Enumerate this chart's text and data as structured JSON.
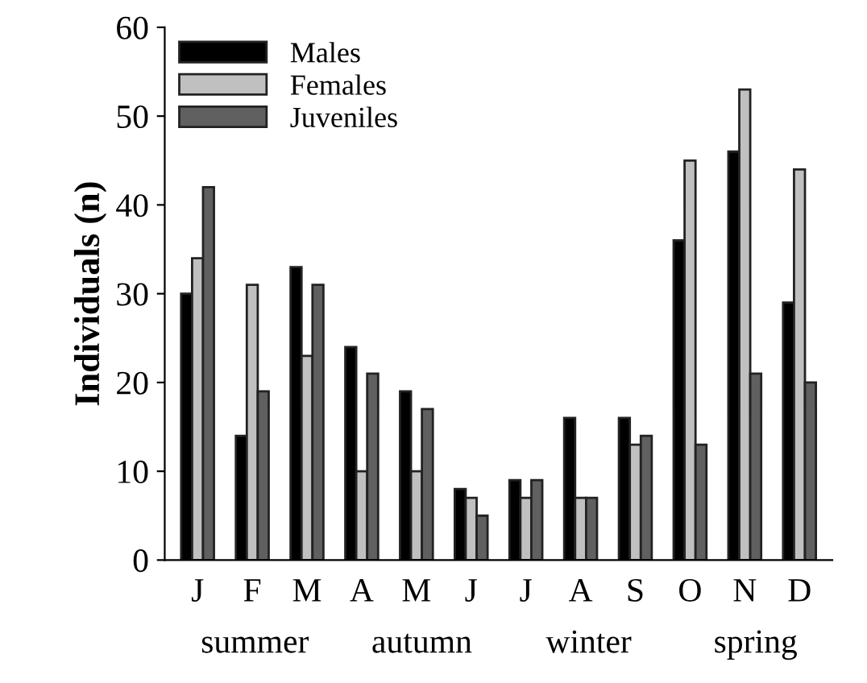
{
  "chart_data": {
    "type": "bar",
    "ylabel": "Individuals (n)",
    "categories": [
      "J",
      "F",
      "M",
      "A",
      "M",
      "J",
      "J",
      "A",
      "S",
      "O",
      "N",
      "D"
    ],
    "series": [
      {
        "name": "Males",
        "color": "#000000",
        "values": [
          30,
          14,
          33,
          24,
          19,
          8,
          9,
          16,
          16,
          36,
          46,
          29
        ]
      },
      {
        "name": "Females",
        "color": "#c0c0c0",
        "values": [
          34,
          31,
          23,
          10,
          10,
          7,
          7,
          7,
          13,
          45,
          53,
          44
        ]
      },
      {
        "name": "Juveniles",
        "color": "#606060",
        "values": [
          42,
          19,
          31,
          21,
          17,
          5,
          9,
          7,
          14,
          13,
          21,
          20
        ]
      }
    ],
    "ylim": [
      0,
      60
    ],
    "yticks": [
      0,
      10,
      20,
      30,
      40,
      50,
      60
    ],
    "grid": false,
    "legend": "top left",
    "annotations": [
      "summer",
      "autumn",
      "winter",
      "spring"
    ]
  }
}
